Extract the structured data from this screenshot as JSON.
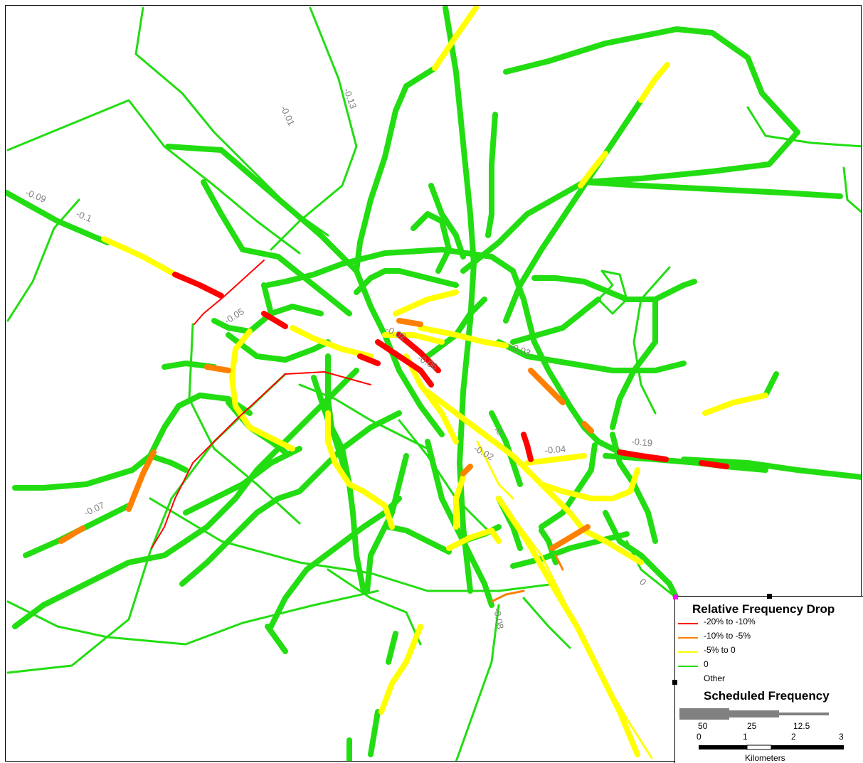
{
  "route_labels": [
    "-0.09",
    "-0.1",
    "-0.01",
    "-0.13",
    "-0.05",
    "-0.02",
    "-0.06",
    "-0.03",
    "-0.04",
    "-0.19",
    "-0.02",
    "-0",
    "-0.07",
    "0",
    "-0.08"
  ],
  "colors": {
    "green": "#22dd11",
    "yellow": "#ffff00",
    "orange": "#ff8000",
    "red": "#ff0000",
    "gray": "#808080"
  },
  "legend": {
    "title": "Relative Frequency Drop",
    "items": [
      {
        "label": "-20% to -10%",
        "color": "#ff0000"
      },
      {
        "label": "-10% to -5%",
        "color": "#ff8000"
      },
      {
        "label": "-5% to 0",
        "color": "#ffff00"
      },
      {
        "label": "0",
        "color": "#22dd11"
      },
      {
        "label": "Other",
        "color": ""
      }
    ],
    "freq_title": "Scheduled Frequency",
    "freq_values": [
      "50",
      "25",
      "12.5"
    ],
    "scale_ticks": [
      "0",
      "1",
      "2",
      "3"
    ],
    "scale_unit": "Kilometers"
  }
}
